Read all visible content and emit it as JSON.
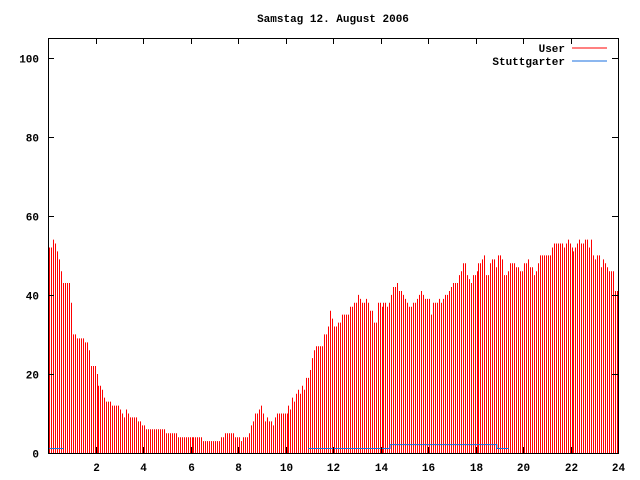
{
  "chart_data": {
    "type": "bar",
    "title": "Samstag 12. August 2006",
    "xlabel": "",
    "ylabel": "",
    "xlim": [
      0,
      24
    ],
    "ylim": [
      0,
      105
    ],
    "x_ticks": [
      "2",
      "4",
      "6",
      "8",
      "10",
      "12",
      "14",
      "16",
      "18",
      "20",
      "22",
      "24"
    ],
    "x_tick_values": [
      2,
      4,
      6,
      8,
      10,
      12,
      14,
      16,
      18,
      20,
      22,
      24
    ],
    "y_ticks": [
      "0",
      "20",
      "40",
      "60",
      "80",
      "100"
    ],
    "y_tick_values": [
      0,
      20,
      40,
      60,
      80,
      100
    ],
    "grid": false,
    "legend_position": "top-right",
    "interval_minutes": 5,
    "series": [
      {
        "name": "User",
        "color": "#ff0000",
        "style": "impulses",
        "values": [
          52,
          52,
          54,
          53,
          51,
          49,
          46,
          43,
          43,
          43,
          43,
          38,
          30,
          30,
          29,
          29,
          29,
          29,
          28,
          28,
          26,
          22,
          22,
          22,
          20,
          17,
          17,
          16,
          14,
          13,
          13,
          13,
          12,
          12,
          12,
          12,
          11,
          10,
          9,
          11,
          10,
          9,
          9,
          9,
          9,
          8,
          8,
          7,
          7,
          6,
          6,
          6,
          6,
          6,
          6,
          6,
          6,
          6,
          6,
          5,
          5,
          5,
          5,
          5,
          5,
          4,
          4,
          4,
          4,
          4,
          4,
          4,
          4,
          4,
          4,
          4,
          4,
          4,
          3,
          3,
          3,
          3,
          3,
          3,
          3,
          3,
          3,
          4,
          4,
          5,
          5,
          5,
          5,
          5,
          4,
          4,
          4,
          3,
          4,
          4,
          4,
          5,
          7,
          8,
          10,
          10,
          11,
          12,
          10,
          8,
          9,
          8,
          8,
          7,
          9,
          10,
          10,
          10,
          10,
          10,
          10,
          12,
          11,
          14,
          13,
          15,
          16,
          15,
          17,
          16,
          19,
          19,
          21,
          24,
          26,
          27,
          27,
          27,
          27,
          30,
          30,
          32,
          36,
          34,
          32,
          32,
          33,
          33,
          35,
          35,
          35,
          35,
          37,
          37,
          38,
          38,
          40,
          39,
          38,
          38,
          39,
          38,
          36,
          36,
          33,
          33,
          38,
          38,
          37,
          38,
          38,
          37,
          38,
          40,
          42,
          42,
          43,
          41,
          41,
          40,
          39,
          38,
          37,
          37,
          38,
          38,
          39,
          40,
          41,
          40,
          39,
          39,
          39,
          35,
          38,
          38,
          38,
          39,
          38,
          39,
          40,
          40,
          41,
          42,
          43,
          43,
          43,
          45,
          46,
          48,
          48,
          45,
          44,
          43,
          45,
          45,
          46,
          48,
          48,
          49,
          50,
          45,
          45,
          48,
          49,
          49,
          47,
          50,
          50,
          49,
          45,
          45,
          46,
          48,
          48,
          48,
          47,
          47,
          46,
          46,
          48,
          48,
          49,
          47,
          47,
          45,
          46,
          48,
          50,
          50,
          50,
          50,
          50,
          50,
          52,
          53,
          53,
          53,
          53,
          53,
          52,
          53,
          54,
          53,
          52,
          51,
          52,
          53,
          54,
          53,
          53,
          54,
          54,
          52,
          54,
          50,
          49,
          50,
          50,
          47,
          49,
          48,
          47,
          46,
          46,
          46,
          41,
          41
        ]
      },
      {
        "name": "Stuttgarter",
        "color": "#1a6fdf",
        "style": "steps",
        "points": [
          [
            0,
            1
          ],
          [
            0.65,
            1
          ],
          null,
          [
            10.95,
            1
          ],
          [
            14.4,
            1
          ],
          [
            14.4,
            2
          ],
          [
            18.9,
            2
          ],
          [
            18.9,
            1
          ],
          [
            19.4,
            1
          ]
        ]
      }
    ]
  }
}
